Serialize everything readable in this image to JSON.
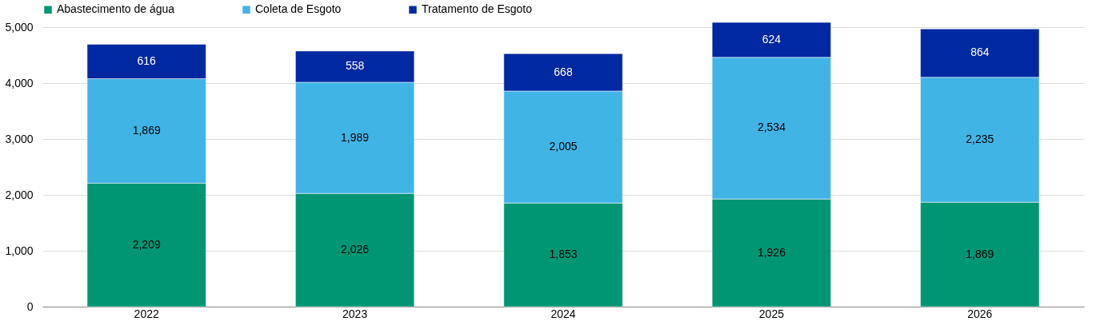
{
  "chart_data": {
    "type": "bar",
    "stacked": true,
    "categories": [
      "2022",
      "2023",
      "2024",
      "2025",
      "2026"
    ],
    "series": [
      {
        "name": "Abastecimento de água",
        "color": "#009673",
        "values": [
          2209,
          2026,
          1853,
          1926,
          1869
        ],
        "value_labels": [
          "2,209",
          "2,026",
          "1,853",
          "1,926",
          "1,869"
        ]
      },
      {
        "name": "Coleta de Esgoto",
        "color": "#41b4e6",
        "values": [
          1869,
          1989,
          2005,
          2534,
          2235
        ],
        "value_labels": [
          "1,869",
          "1,989",
          "2,005",
          "2,534",
          "2,235"
        ]
      },
      {
        "name": "Tratamento de Esgoto",
        "color": "#0028a0",
        "values": [
          616,
          558,
          668,
          624,
          864
        ],
        "value_labels": [
          "616",
          "558",
          "668",
          "624",
          "864"
        ]
      }
    ],
    "ylim": [
      0,
      5100
    ],
    "yticks": [
      {
        "value": 0,
        "label": "0"
      },
      {
        "value": 1000,
        "label": "1,000"
      },
      {
        "value": 2000,
        "label": "2,000"
      },
      {
        "value": 3000,
        "label": "3,000"
      },
      {
        "value": 4000,
        "label": "4,000"
      },
      {
        "value": 5000,
        "label": "5,000"
      }
    ],
    "grid": "y",
    "legend": "top left"
  }
}
